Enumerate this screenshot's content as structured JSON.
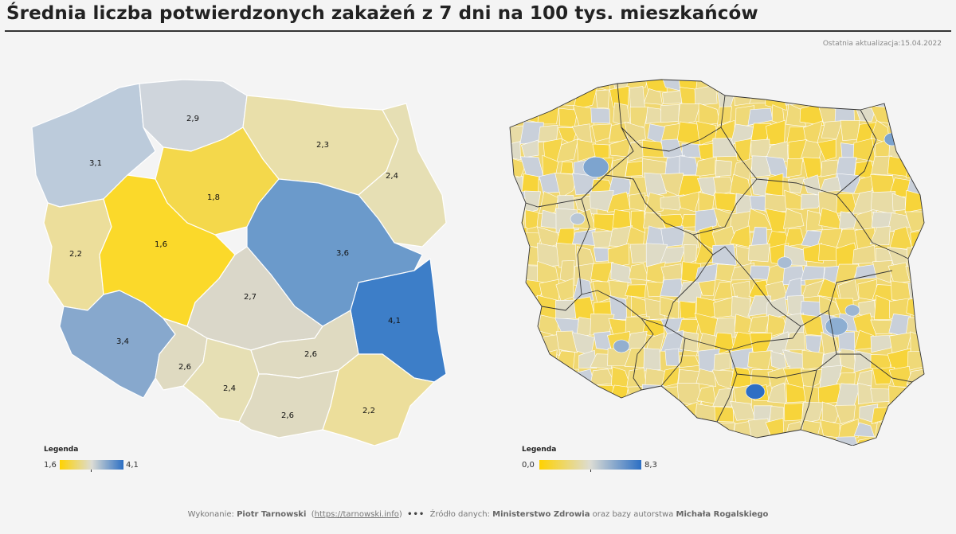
{
  "title": "Średnia liczba potwierdzonych zakażeń z 7 dni na 100 tys. mieszkańców",
  "last_update": "Ostatnia aktualizacja:15.04.2022",
  "left_map": {
    "regions": [
      {
        "id": "zachodniopomorskie",
        "label": "3,1",
        "value": 3.1,
        "color": "#bccbdb"
      },
      {
        "id": "pomorskie",
        "label": "2,9",
        "value": 2.9,
        "color": "#cfd5dc"
      },
      {
        "id": "warminsko-mazurskie",
        "label": "2,3",
        "value": 2.3,
        "color": "#e9dfaa"
      },
      {
        "id": "podlaskie",
        "label": "2,4",
        "value": 2.4,
        "color": "#e6dfb4"
      },
      {
        "id": "kujawsko-pomorskie",
        "label": "1,8",
        "value": 1.8,
        "color": "#f4d84b"
      },
      {
        "id": "lubuskie",
        "label": "2,2",
        "value": 2.2,
        "color": "#ecde9b"
      },
      {
        "id": "wielkopolskie",
        "label": "1,6",
        "value": 1.6,
        "color": "#fbd92a"
      },
      {
        "id": "mazowieckie",
        "label": "3,6",
        "value": 3.6,
        "color": "#6b9acb"
      },
      {
        "id": "lodzkie",
        "label": "2,7",
        "value": 2.7,
        "color": "#dad7c9"
      },
      {
        "id": "lubelskie",
        "label": "4,1",
        "value": 4.1,
        "color": "#3d7ec8"
      },
      {
        "id": "dolnoslaskie",
        "label": "3,4",
        "value": 3.4,
        "color": "#87a8cd"
      },
      {
        "id": "opolskie",
        "label": "2,6",
        "value": 2.6,
        "color": "#dfdac1"
      },
      {
        "id": "slaskie",
        "label": "2,4",
        "value": 2.4,
        "color": "#e6dfb4"
      },
      {
        "id": "swietokrzyskie",
        "label": "2,6",
        "value": 2.6,
        "color": "#dfdac1"
      },
      {
        "id": "malopolskie",
        "label": "2,6",
        "value": 2.6,
        "color": "#dfdac1"
      },
      {
        "id": "podkarpackie",
        "label": "2,2",
        "value": 2.2,
        "color": "#ecde9b"
      }
    ],
    "legend": {
      "title": "Legenda",
      "min": "1,6",
      "max": "4,1"
    }
  },
  "right_map": {
    "legend": {
      "title": "Legenda",
      "min": "0,0",
      "max": "8,3"
    }
  },
  "colors": {
    "low": "#ffd200",
    "mid": "#dcdcd4",
    "high": "#2c6fc4"
  },
  "footer": {
    "made_by_prefix": "Wykonanie:",
    "author": "Piotr Tarnowski",
    "paren_open": "(",
    "link": "https://tarnowski.info",
    "paren_close": ")",
    "separator": "•••",
    "source_prefix": "Źródło danych:",
    "source": "Ministerstwo Zdrowia",
    "and_text": "oraz bazy autorstwa",
    "source2": "Michała Rogalskiego"
  }
}
